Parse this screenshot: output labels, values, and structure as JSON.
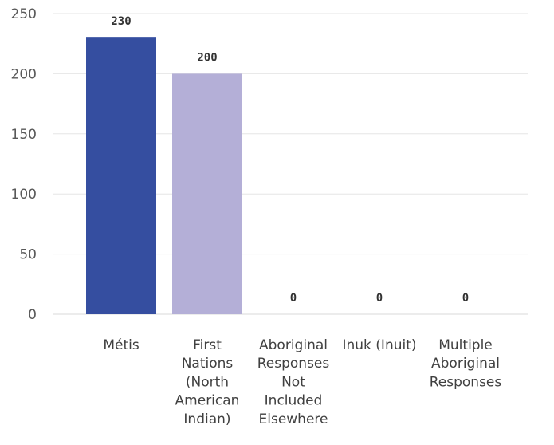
{
  "chart_data": {
    "type": "bar",
    "categories": [
      [
        "Métis"
      ],
      [
        "First",
        "Nations",
        "(North",
        "American",
        "Indian)"
      ],
      [
        "Aboriginal",
        "Responses",
        "Not",
        "Included",
        "Elsewhere"
      ],
      [
        "Inuk (Inuit)"
      ],
      [
        "Multiple",
        "Aboriginal",
        "Responses"
      ]
    ],
    "values": [
      230,
      200,
      0,
      0,
      0
    ],
    "data_labels": [
      "230",
      "200",
      "0",
      "0",
      "0"
    ],
    "colors": [
      "#354ea0",
      "#b4afd7",
      "#354ea0",
      "#354ea0",
      "#354ea0"
    ],
    "y_ticks": [
      "0",
      "50",
      "100",
      "150",
      "200",
      "250"
    ],
    "ylim": [
      0,
      250
    ],
    "grid": true,
    "legend": "none"
  }
}
